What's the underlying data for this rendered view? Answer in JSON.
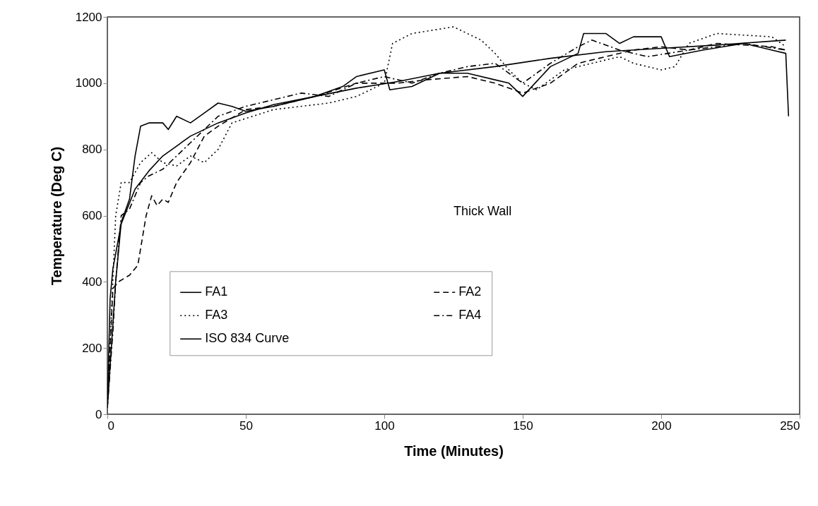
{
  "chart_data": {
    "type": "line",
    "xlabel": "Time (Minutes)",
    "ylabel": "Temperature (Deg C)",
    "xlim": [
      0,
      250
    ],
    "ylim": [
      0,
      1200
    ],
    "xticks": [
      0,
      50,
      100,
      150,
      200,
      250
    ],
    "yticks": [
      0,
      200,
      400,
      600,
      800,
      1000,
      1200
    ],
    "grid": false,
    "legend": "bottom left",
    "annotations": [
      "Thick Wall"
    ],
    "series": [
      {
        "name": "FA1",
        "color": "#000000",
        "line_style": "solid",
        "x": [
          0,
          3,
          5,
          8,
          10,
          12,
          15,
          20,
          22,
          25,
          30,
          35,
          40,
          45,
          50,
          60,
          75,
          85,
          90,
          100,
          102,
          110,
          120,
          130,
          140,
          145,
          150,
          160,
          170,
          172,
          180,
          185,
          190,
          200,
          203,
          215,
          230,
          240,
          245,
          246
        ],
        "values": [
          20,
          400,
          580,
          650,
          780,
          870,
          880,
          880,
          860,
          900,
          880,
          910,
          940,
          930,
          915,
          930,
          960,
          990,
          1020,
          1040,
          980,
          990,
          1030,
          1030,
          1010,
          1000,
          960,
          1050,
          1090,
          1150,
          1150,
          1120,
          1140,
          1140,
          1080,
          1100,
          1120,
          1100,
          1090,
          900
        ]
      },
      {
        "name": "FA2",
        "color": "#000000",
        "line_style": "dashed",
        "x": [
          0,
          2,
          4,
          8,
          11,
          14,
          16,
          18,
          20,
          22,
          25,
          30,
          35,
          40,
          50,
          60,
          75,
          90,
          100,
          105,
          115,
          130,
          140,
          150,
          160,
          170,
          180,
          190,
          200,
          210,
          220,
          240,
          245
        ],
        "values": [
          20,
          380,
          400,
          420,
          450,
          600,
          660,
          630,
          650,
          640,
          700,
          760,
          840,
          870,
          920,
          930,
          960,
          1000,
          1000,
          1000,
          1010,
          1020,
          1000,
          970,
          1000,
          1060,
          1080,
          1100,
          1110,
          1100,
          1120,
          1110,
          1100
        ]
      },
      {
        "name": "FA3",
        "color": "#000000",
        "line_style": "dotted",
        "x": [
          0,
          3,
          5,
          8,
          12,
          16,
          20,
          25,
          30,
          35,
          40,
          45,
          60,
          80,
          90,
          100,
          103,
          110,
          125,
          135,
          140,
          145,
          150,
          155,
          165,
          175,
          185,
          190,
          200,
          205,
          210,
          220,
          240,
          245
        ],
        "values": [
          20,
          600,
          700,
          700,
          760,
          790,
          760,
          750,
          780,
          760,
          800,
          880,
          920,
          940,
          960,
          1000,
          1120,
          1150,
          1170,
          1130,
          1090,
          1040,
          1000,
          980,
          1040,
          1060,
          1080,
          1060,
          1040,
          1050,
          1120,
          1150,
          1140,
          1110
        ]
      },
      {
        "name": "FA4",
        "color": "#000000",
        "line_style": "dashdot",
        "x": [
          0,
          2,
          3,
          5,
          8,
          12,
          15,
          20,
          30,
          40,
          50,
          60,
          70,
          80,
          90,
          100,
          110,
          120,
          130,
          140,
          150,
          160,
          170,
          175,
          185,
          195,
          210,
          230,
          245
        ],
        "values": [
          20,
          250,
          400,
          600,
          620,
          700,
          720,
          740,
          820,
          900,
          930,
          950,
          970,
          960,
          1000,
          1020,
          1000,
          1030,
          1050,
          1060,
          1000,
          1060,
          1110,
          1130,
          1100,
          1080,
          1100,
          1120,
          1100
        ]
      },
      {
        "name": "ISO 834 Curve",
        "color": "#000000",
        "line_style": "solid",
        "x": [
          0,
          1,
          2,
          5,
          10,
          15,
          20,
          30,
          40,
          50,
          60,
          75,
          90,
          105,
          120,
          140,
          160,
          180,
          200,
          220,
          245
        ],
        "values": [
          20,
          350,
          440,
          575,
          680,
          735,
          780,
          840,
          880,
          910,
          935,
          960,
          985,
          1005,
          1030,
          1050,
          1075,
          1095,
          1105,
          1115,
          1130
        ]
      }
    ]
  }
}
